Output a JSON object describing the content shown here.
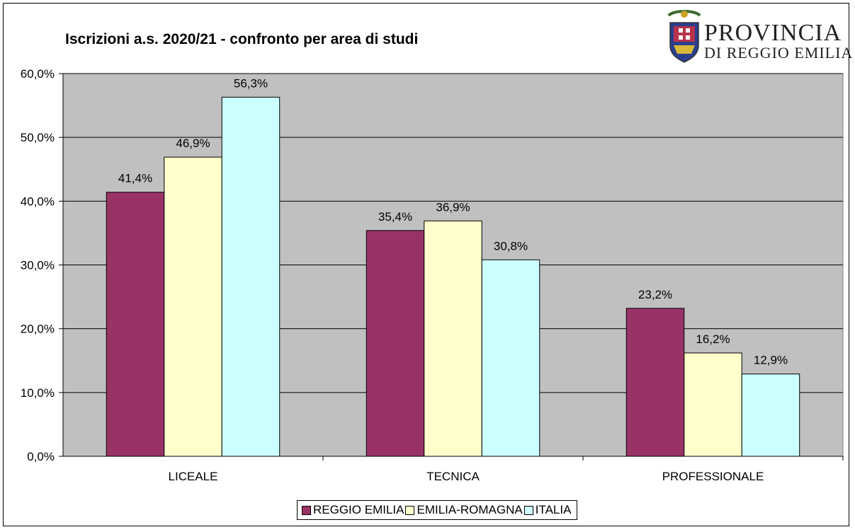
{
  "chart_data": {
    "type": "bar",
    "title": "Iscrizioni a.s. 2020/21 - confronto per area di studi",
    "categories": [
      "LICEALE",
      "TECNICA",
      "PROFESSIONALE"
    ],
    "series": [
      {
        "name": "REGGIO EMILIA",
        "color": "#993366",
        "values": [
          41.4,
          35.4,
          23.2
        ],
        "labels": [
          "41,4%",
          "35,4%",
          "23,2%"
        ]
      },
      {
        "name": "EMILIA-ROMAGNA",
        "color": "#FFFFCC",
        "values": [
          46.9,
          36.9,
          16.2
        ],
        "labels": [
          "46,9%",
          "36,9%",
          "16,2%"
        ]
      },
      {
        "name": "ITALIA",
        "color": "#CCFFFF",
        "values": [
          56.3,
          30.8,
          12.9
        ],
        "labels": [
          "56,3%",
          "30,8%",
          "12,9%"
        ]
      }
    ],
    "ylim": [
      0,
      60
    ],
    "yticks": [
      0,
      10,
      20,
      30,
      40,
      50,
      60
    ],
    "ytick_labels": [
      "0,0%",
      "10,0%",
      "20,0%",
      "30,0%",
      "40,0%",
      "50,0%",
      "60,0%"
    ],
    "xlabel": "",
    "ylabel": "",
    "grid": true,
    "legend_position": "bottom",
    "plot_background": "#C0C0C0"
  },
  "logo": {
    "line1": "PROVINCIA",
    "line2": "DI REGGIO EMILIA"
  }
}
